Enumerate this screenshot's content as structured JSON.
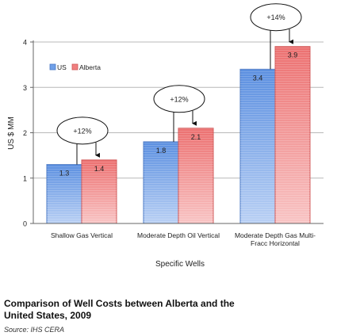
{
  "chart_data": {
    "type": "bar",
    "ylabel": "US $ MM",
    "xlabel": "Specific Wells",
    "ylim": [
      0,
      4
    ],
    "yticks": [
      "0",
      "1",
      "2",
      "3",
      "4"
    ],
    "grid": true,
    "legend_position": "top-left",
    "categories": [
      [
        "Shallow Gas Vertical"
      ],
      [
        "Moderate Depth Oil Vertical"
      ],
      [
        "Moderate Depth Gas Multi-",
        "Fracc Horizontal"
      ]
    ],
    "series": [
      {
        "name": "US",
        "values": [
          1.3,
          1.8,
          3.4
        ],
        "labels": [
          "1.3",
          "1.8",
          "3.4"
        ],
        "color": "#6fa0e8"
      },
      {
        "name": "Alberta",
        "values": [
          1.4,
          2.1,
          3.9
        ],
        "labels": [
          "1.4",
          "2.1",
          "3.9"
        ],
        "color": "#f08080"
      }
    ],
    "annotations": [
      "+12%",
      "+12%",
      "+14%"
    ]
  },
  "caption": {
    "title": "Comparison of Well Costs between Alberta and the United States, 2009",
    "source": "Source: IHS CERA"
  }
}
